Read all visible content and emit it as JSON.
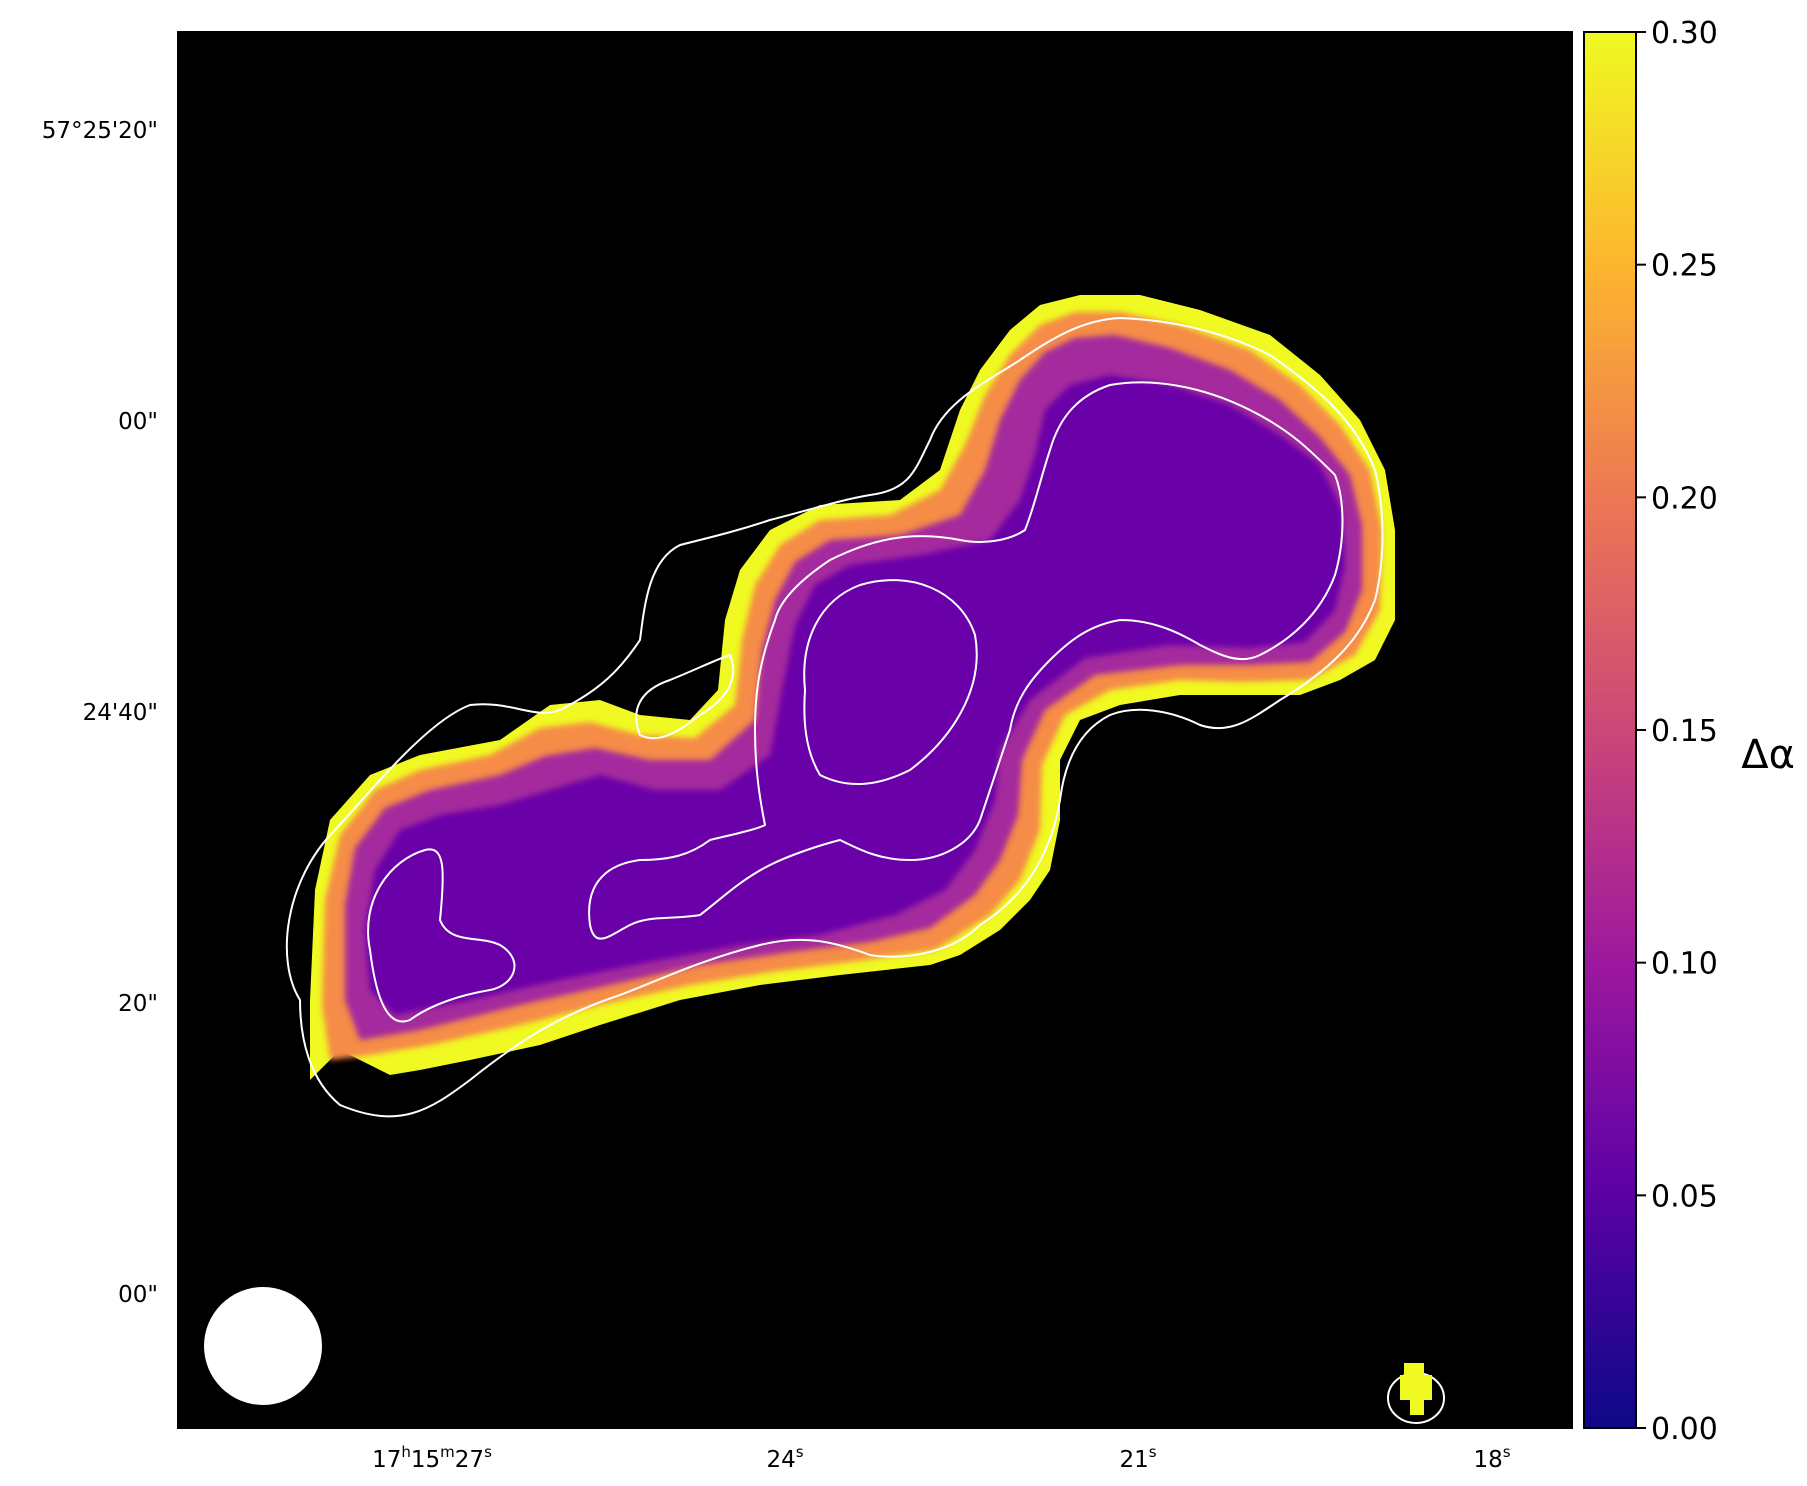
{
  "figure": {
    "image_description_type": "radio source spectral-index error map with contours",
    "colormap": "plasma",
    "background_color": "#000000",
    "contour_color": "#ffffff"
  },
  "axes": {
    "ra_ticks": [
      {
        "h": "17",
        "m": "15",
        "s": "27"
      },
      {
        "s": "24"
      },
      {
        "s": "21"
      },
      {
        "s": "18"
      }
    ],
    "dec_ticks": [
      "57°25'20\"",
      "00\"",
      "24'40\"",
      "20\"",
      "00\""
    ]
  },
  "colorbar": {
    "label": "Δα",
    "min": 0.0,
    "max": 0.3,
    "ticks": [
      "0.00",
      "0.05",
      "0.10",
      "0.15",
      "0.20",
      "0.25",
      "0.30"
    ],
    "colors": [
      "#0d0887",
      "#5c01a6",
      "#9c179e",
      "#cc4778",
      "#ed7953",
      "#fdb42f",
      "#f0f921"
    ]
  },
  "beam": {
    "shape": "circle",
    "color": "#ffffff"
  }
}
